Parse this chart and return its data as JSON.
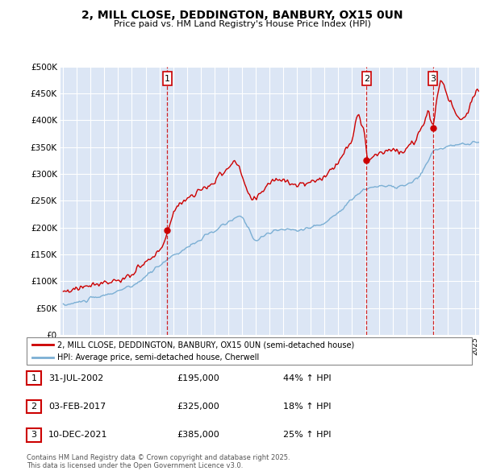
{
  "title": "2, MILL CLOSE, DEDDINGTON, BANBURY, OX15 0UN",
  "subtitle": "Price paid vs. HM Land Registry's House Price Index (HPI)",
  "ylim": [
    0,
    500000
  ],
  "yticks": [
    0,
    50000,
    100000,
    150000,
    200000,
    250000,
    300000,
    350000,
    400000,
    450000,
    500000
  ],
  "plot_bg_color": "#dce6f5",
  "red_color": "#cc0000",
  "blue_color": "#7bafd4",
  "sale_dates_num": [
    2002.58,
    2017.09,
    2021.94
  ],
  "sale_prices": [
    195000,
    325000,
    385000
  ],
  "sale_labels": [
    "1",
    "2",
    "3"
  ],
  "sale_info": [
    {
      "num": "1",
      "date": "31-JUL-2002",
      "price": "£195,000",
      "hpi": "44% ↑ HPI"
    },
    {
      "num": "2",
      "date": "03-FEB-2017",
      "price": "£325,000",
      "hpi": "18% ↑ HPI"
    },
    {
      "num": "3",
      "date": "10-DEC-2021",
      "price": "£385,000",
      "hpi": "25% ↑ HPI"
    }
  ],
  "legend_line1": "2, MILL CLOSE, DEDDINGTON, BANBURY, OX15 0UN (semi-detached house)",
  "legend_line2": "HPI: Average price, semi-detached house, Cherwell",
  "footer": "Contains HM Land Registry data © Crown copyright and database right 2025.\nThis data is licensed under the Open Government Licence v3.0.",
  "x_start_year": 1995,
  "x_end_year": 2026
}
